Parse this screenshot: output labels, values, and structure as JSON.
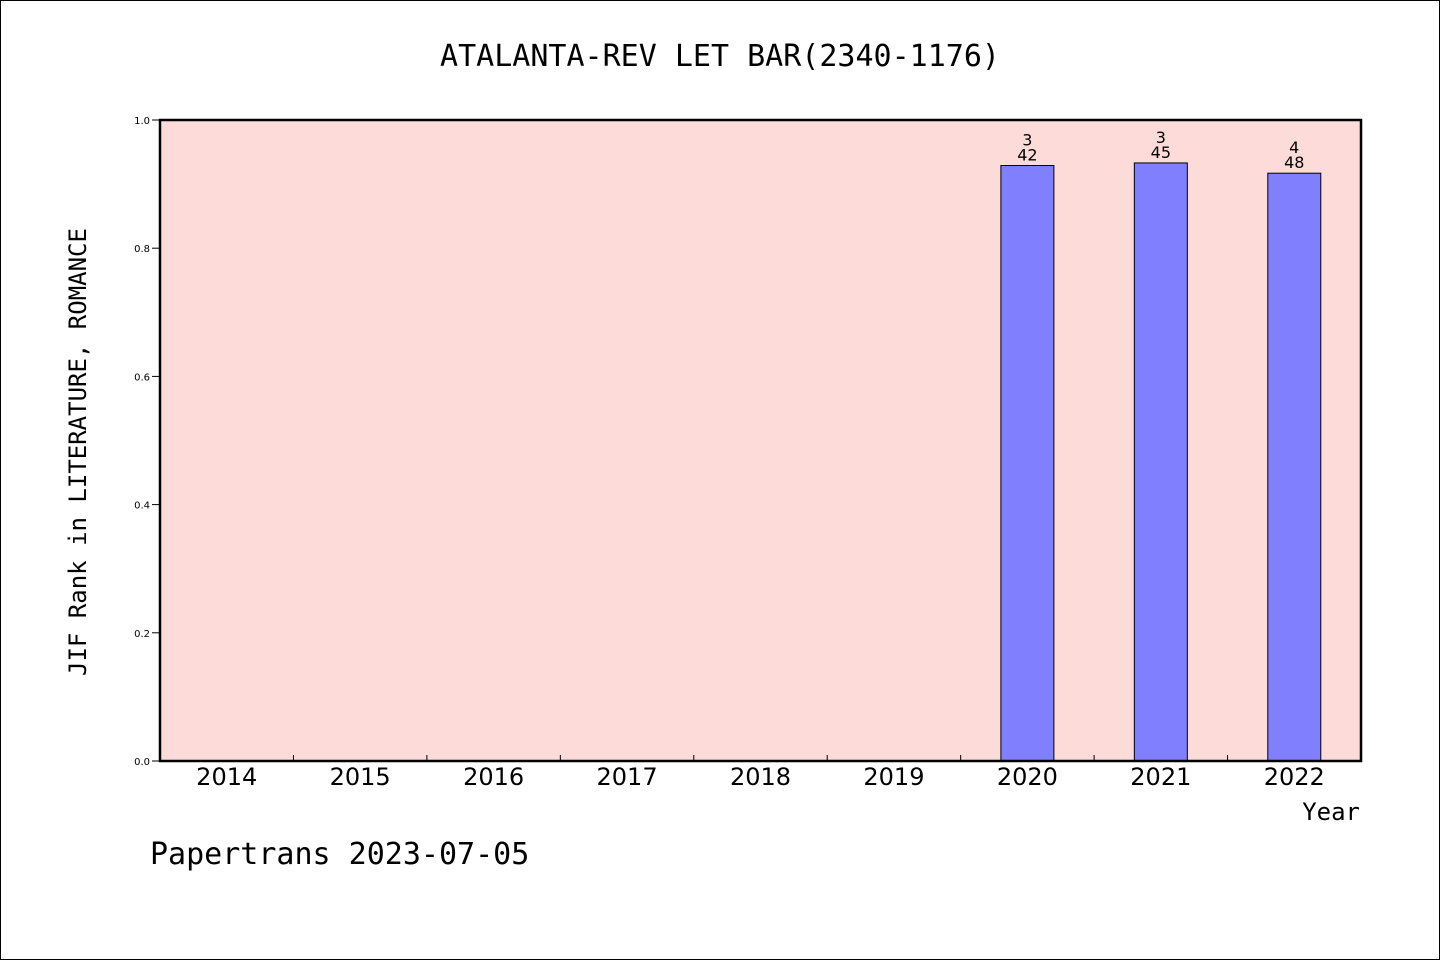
{
  "chart_data": {
    "type": "bar",
    "title": "ATALANTA-REV LET BAR(2340-1176)",
    "xlabel": "Year",
    "ylabel": "JIF Rank in LITERATURE, ROMANCE",
    "ylim": [
      0,
      1.0
    ],
    "yticks": [
      "0.0",
      "0.2",
      "0.4",
      "0.6",
      "0.8",
      "1.0"
    ],
    "categories": [
      "2014",
      "2015",
      "2016",
      "2017",
      "2018",
      "2019",
      "2020",
      "2021",
      "2022"
    ],
    "values": [
      null,
      null,
      null,
      null,
      null,
      null,
      0.929,
      0.933,
      0.917
    ],
    "bar_labels": [
      null,
      null,
      null,
      null,
      null,
      null,
      {
        "rank": "3",
        "total": "42"
      },
      {
        "rank": "3",
        "total": "45"
      },
      {
        "rank": "4",
        "total": "48"
      }
    ],
    "grid": false,
    "colors": {
      "plot_background": "#fddbd8",
      "bar_fill": "#8080ff",
      "bar_edge": "#000000"
    }
  },
  "footer": "Papertrans 2023-07-05"
}
